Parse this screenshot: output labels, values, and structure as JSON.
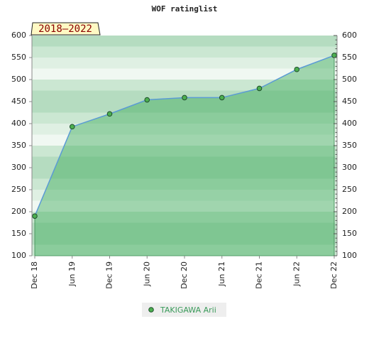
{
  "chart_data": {
    "type": "area",
    "title": "WOF ratinglist",
    "annotation": "2018–2022",
    "categories": [
      "Dec 18",
      "Jun 19",
      "Dec 19",
      "Jun 20",
      "Dec 20",
      "Jun 21",
      "Dec 21",
      "Jun 22",
      "Dec 22"
    ],
    "series": [
      {
        "name": "TAKIGAWA Arii",
        "color": "#5b9bd5",
        "values": [
          190,
          393,
          422,
          454,
          459,
          459,
          480,
          523,
          555
        ]
      }
    ],
    "ylim": [
      100,
      600
    ],
    "yticks": [
      100,
      150,
      200,
      250,
      300,
      350,
      400,
      450,
      500,
      550,
      600
    ],
    "y2lim": [
      100,
      600
    ],
    "y2ticks": [
      100,
      150,
      200,
      250,
      300,
      350,
      400,
      450,
      500,
      550,
      600
    ]
  }
}
